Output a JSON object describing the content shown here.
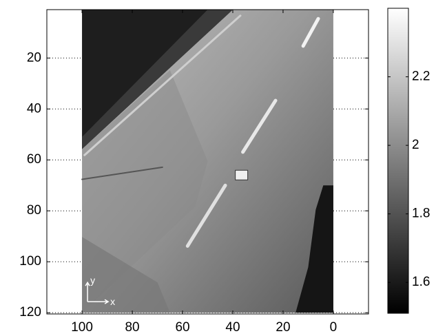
{
  "chart_data": {
    "type": "image",
    "image": {
      "x": [
        0,
        100
      ],
      "y": [
        1,
        120
      ],
      "colormap": "gray"
    },
    "xlim": [
      -14,
      114
    ],
    "xdir": "reverse",
    "xticks": [
      0,
      20,
      40,
      60,
      80,
      100
    ],
    "ylim": [
      1,
      120.5
    ],
    "ydir": "reverse",
    "yticks": [
      20,
      40,
      60,
      80,
      100,
      120
    ],
    "grid": true,
    "annotations": [
      "y",
      "x"
    ],
    "colorbar": {
      "clim": [
        1.51,
        2.4
      ],
      "ticks": [
        1.6,
        1.8,
        2,
        2.2
      ]
    }
  }
}
